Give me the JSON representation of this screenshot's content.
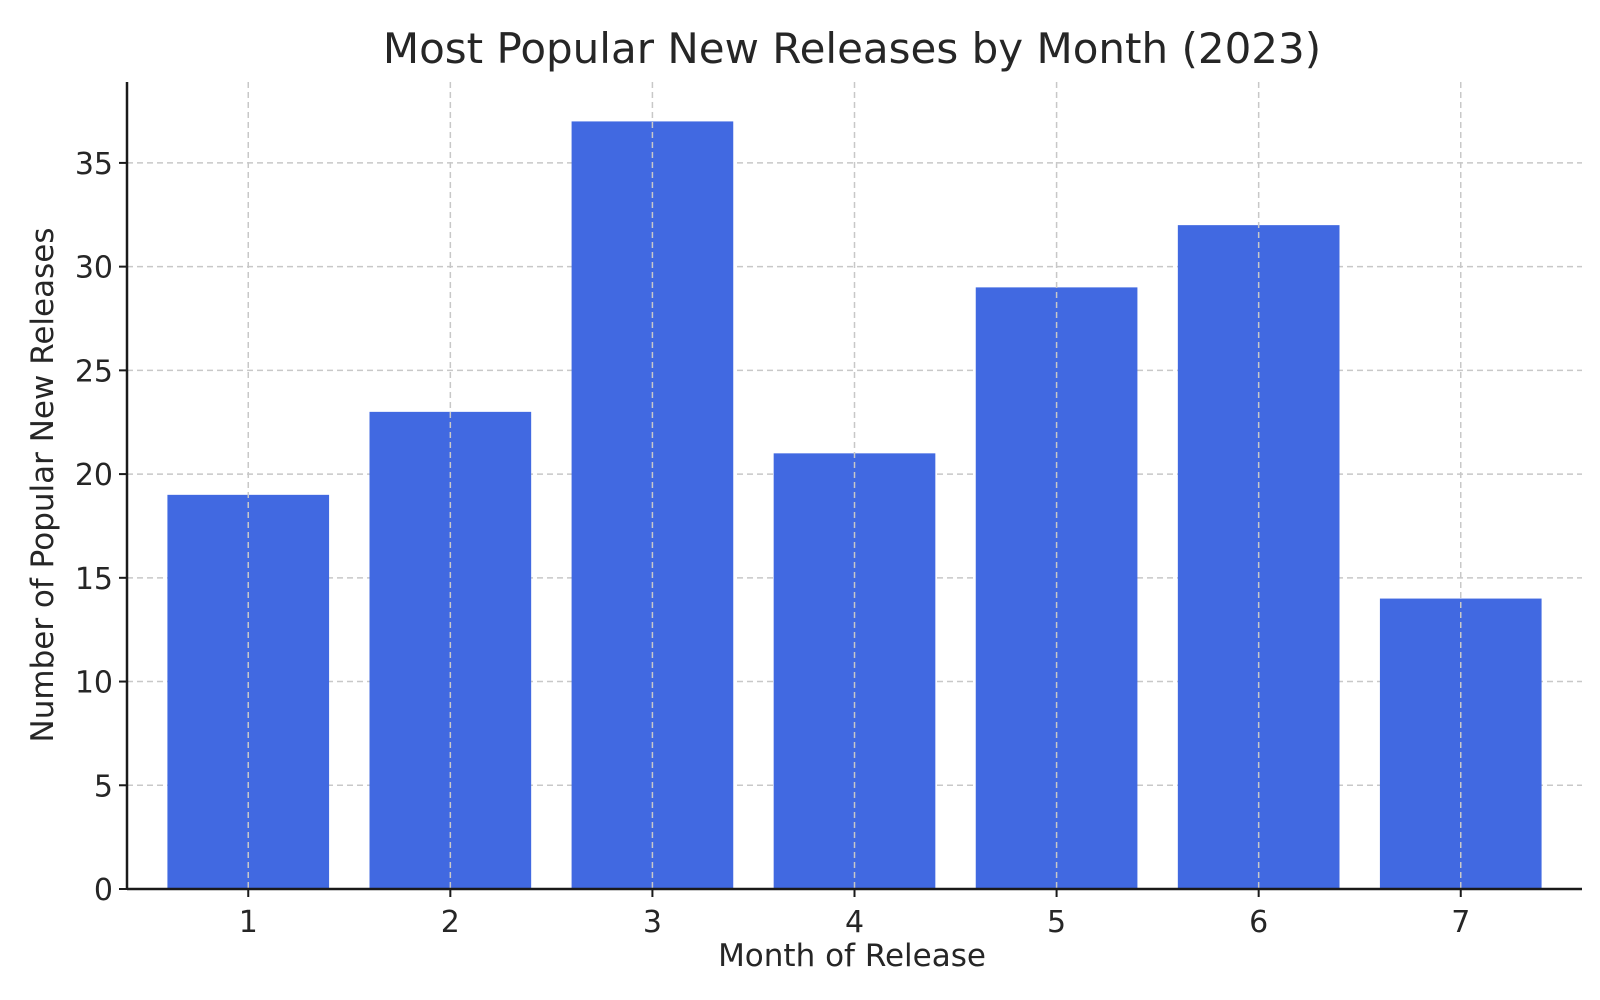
{
  "chart_data": {
    "type": "bar",
    "title": "Most Popular New Releases by Month (2023)",
    "xlabel": "Month of Release",
    "ylabel": "Number of Popular New Releases",
    "categories": [
      "1",
      "2",
      "3",
      "4",
      "5",
      "6",
      "7"
    ],
    "values": [
      19,
      23,
      37,
      21,
      29,
      32,
      14
    ],
    "ylim": [
      0,
      38.9
    ],
    "yticks": [
      0,
      5,
      10,
      15,
      20,
      25,
      30,
      35
    ],
    "grid": true,
    "bar_color": "#4169E1"
  }
}
